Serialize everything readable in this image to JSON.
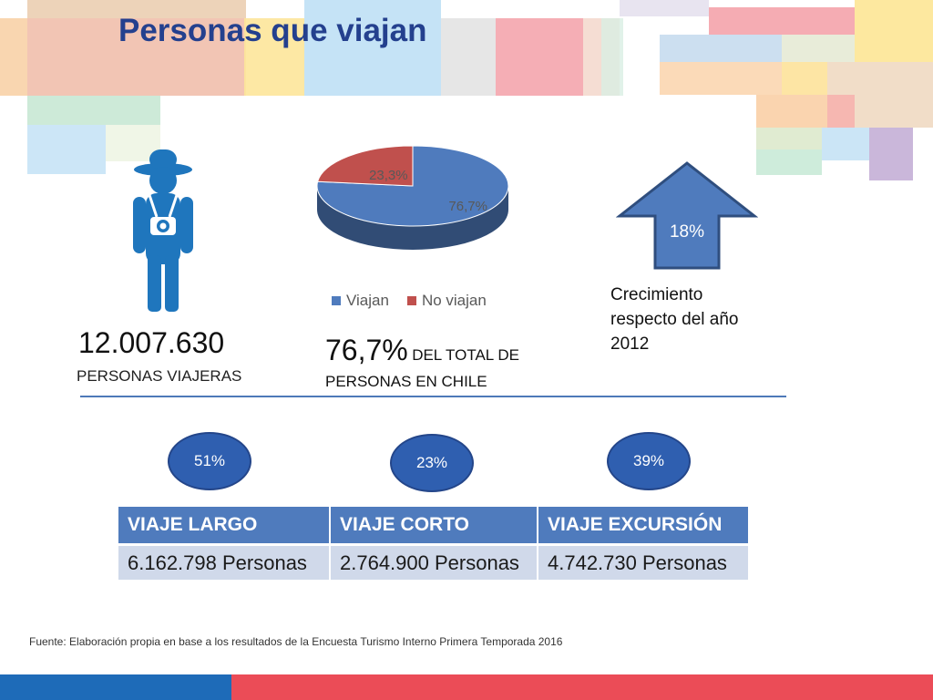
{
  "page": {
    "title": "Personas que viajan"
  },
  "travelers": {
    "icon": "traveler-with-camera-icon",
    "count": "12.007.630",
    "label": "PERSONAS VIAJERAS"
  },
  "chart_data": {
    "type": "pie",
    "categories": [
      "Viajan",
      "No viajan"
    ],
    "values": [
      76.7,
      23.3
    ],
    "data_labels": [
      "76,7%",
      "23,3%"
    ],
    "colors": [
      "#4f7bbd",
      "#c0504d"
    ],
    "legend_position": "bottom",
    "style": "3d"
  },
  "share": {
    "percent": "76,7%",
    "text_line1": "DEL TOTAL DE",
    "text_line2": "PERSONAS EN CHILE"
  },
  "growth": {
    "icon": "up-arrow-icon",
    "value": "18%",
    "description": "Crecimiento respecto del año 2012"
  },
  "trips": {
    "columns": [
      "VIAJE LARGO",
      "VIAJE CORTO",
      "VIAJE EXCURSIÓN"
    ],
    "percents": [
      "51%",
      "23%",
      "39%"
    ],
    "persons": [
      "6.162.798 Personas",
      "2.764.900 Personas",
      "4.742.730 Personas"
    ]
  },
  "footer": {
    "source": "Fuente: Elaboración propia en base a los resultados de la Encuesta Turismo Interno Primera Temporada 2016"
  },
  "colors": {
    "title": "#24408e",
    "accent_blue": "#4f7bbd",
    "accent_red": "#c0504d",
    "bar_blue": "#1e6bb8",
    "bar_red": "#eb4c57"
  }
}
